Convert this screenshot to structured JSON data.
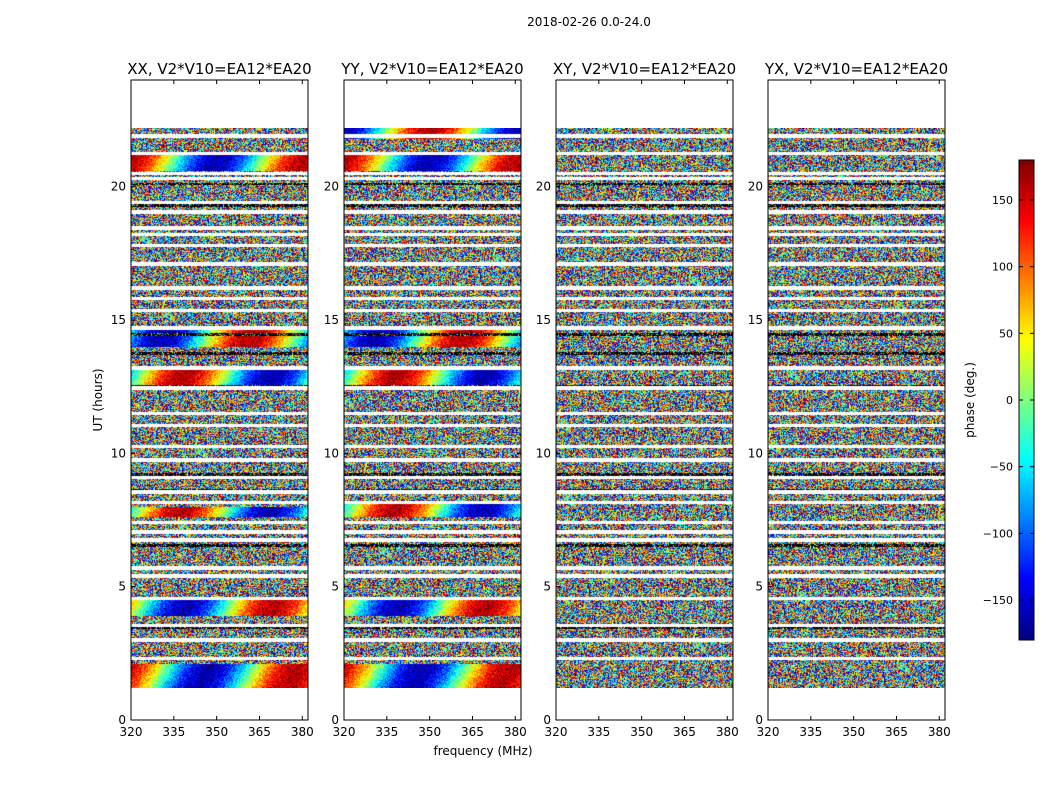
{
  "chart_data": {
    "type": "heatmap",
    "suptitle": "2018-02-26 0.0-24.0",
    "xlabel": "frequency (MHz)",
    "ylabel": "UT (hours)",
    "xlim": [
      320,
      382
    ],
    "ylim": [
      0,
      24
    ],
    "xticks": [
      320,
      335,
      350,
      365,
      380
    ],
    "yticks": [
      0,
      5,
      10,
      15,
      20
    ],
    "data_extent_hours": [
      1.2,
      22.2
    ],
    "panels": [
      {
        "title": "XX, V2*V10=EA12*EA20",
        "correlation": "XX"
      },
      {
        "title": "YY, V2*V10=EA12*EA20",
        "correlation": "YY"
      },
      {
        "title": "XY, V2*V10=EA12*EA20",
        "correlation": "XY"
      },
      {
        "title": "YX, V2*V10=EA12*EA20",
        "correlation": "YX"
      }
    ],
    "gap_hours": [
      2.3,
      3.0,
      3.55,
      4.55,
      5.4,
      5.7,
      6.75,
      7.05,
      7.4,
      8.15,
      8.55,
      9.1,
      9.75,
      10.25,
      11.05,
      11.5,
      12.45,
      13.2,
      14.7,
      15.35,
      15.8,
      16.2,
      17.1,
      17.8,
      18.2,
      18.45,
      19.05,
      19.4,
      20.3,
      20.5,
      21.25,
      21.9
    ],
    "flagged_bands_hours": [
      3.45,
      6.55,
      8.6,
      9.2,
      12.5,
      13.75,
      14.45,
      19.3,
      20.1
    ],
    "coherent_bands": {
      "XX": [
        [
          1.2,
          2.1
        ],
        [
          3.9,
          4.6
        ],
        [
          7.6,
          8.0
        ],
        [
          12.5,
          13.2
        ],
        [
          14.0,
          14.7
        ],
        [
          20.6,
          21.3
        ]
      ],
      "YY": [
        [
          1.2,
          2.1
        ],
        [
          3.9,
          4.6
        ],
        [
          7.6,
          8.2
        ],
        [
          12.5,
          13.2
        ],
        [
          14.0,
          14.7
        ],
        [
          20.6,
          21.3
        ],
        [
          21.8,
          22.2
        ]
      ],
      "XY": [],
      "YX": []
    },
    "colorbar": {
      "label": "phase (deg.)",
      "range": [
        -180,
        180
      ],
      "ticks": [
        -150,
        -100,
        -50,
        0,
        50,
        100,
        150
      ],
      "tick_labels": [
        "−150",
        "−100",
        "−50",
        "0",
        "50",
        "100",
        "150"
      ],
      "colormap": "jet"
    }
  }
}
